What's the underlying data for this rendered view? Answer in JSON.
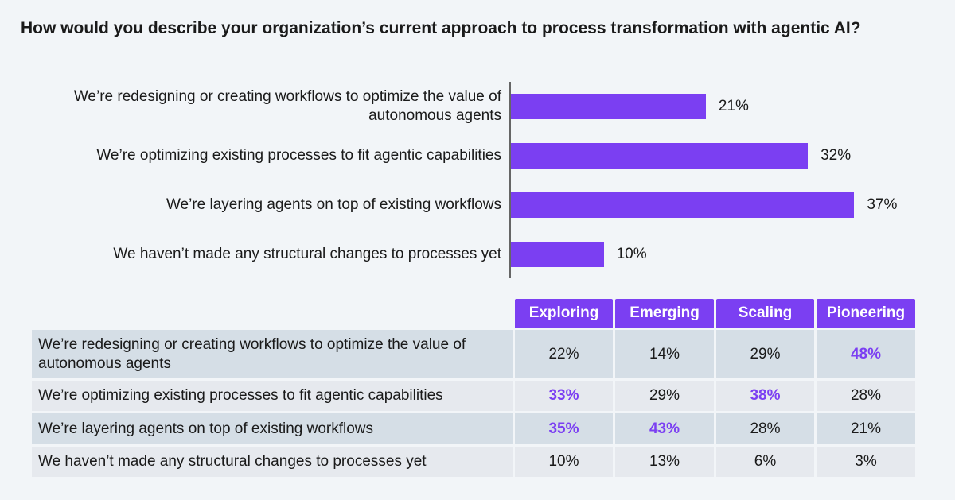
{
  "chart_data": {
    "type": "bar",
    "orientation": "horizontal",
    "title": "How would you describe your organization’s current approach to process transformation with agentic AI?",
    "categories": [
      "We’re redesigning or creating workflows to optimize the value of autonomous agents",
      "We’re optimizing existing processes to fit agentic capabilities",
      "We’re layering agents on top of existing workflows",
      "We haven’t made any structural changes to processes yet"
    ],
    "values": [
      21,
      32,
      37,
      10
    ],
    "value_labels": [
      "21%",
      "32%",
      "37%",
      "10%"
    ],
    "color": "#7b3ff2"
  },
  "table": {
    "columns": [
      "Exploring",
      "Emerging",
      "Scaling",
      "Pioneering"
    ],
    "rows": [
      {
        "label": "We’re redesigning or creating workflows to optimize the value of autonomous agents",
        "cells": [
          "22%",
          "14%",
          "29%",
          "48%"
        ],
        "highlighted": [
          false,
          false,
          false,
          true
        ]
      },
      {
        "label": "We’re optimizing existing processes to fit agentic capabilities",
        "cells": [
          "33%",
          "29%",
          "38%",
          "28%"
        ],
        "highlighted": [
          true,
          false,
          true,
          false
        ]
      },
      {
        "label": "We’re layering agents on top of existing workflows",
        "cells": [
          "35%",
          "43%",
          "28%",
          "21%"
        ],
        "highlighted": [
          true,
          true,
          false,
          false
        ]
      },
      {
        "label": "We haven’t made any structural changes to processes yet",
        "cells": [
          "10%",
          "13%",
          "6%",
          "3%"
        ],
        "highlighted": [
          false,
          false,
          false,
          false
        ]
      }
    ],
    "header_color": "#7b3ff2",
    "highlight_color": "#7b3ff2"
  }
}
